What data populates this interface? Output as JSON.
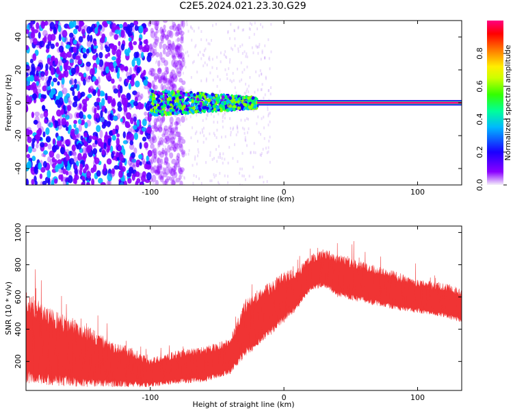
{
  "title": "C2E5.2024.021.23.30.G29",
  "chart_data": [
    {
      "type": "heatmap",
      "xlabel": "Height of straight line (km)",
      "ylabel": "Frequency (Hz)",
      "xlim": [
        -193,
        133
      ],
      "ylim": [
        -50,
        50
      ],
      "xticks": [
        -100,
        0,
        100
      ],
      "yticks": [
        -40,
        -20,
        0,
        20,
        40
      ],
      "colorbar": {
        "label": "Normalized spectral amplitude",
        "range": [
          0,
          1
        ],
        "ticks": [
          0.0,
          0.2,
          0.4,
          0.6,
          0.8
        ],
        "colormap": [
          "#f2f2f2",
          "#8a00ff",
          "#1a00ff",
          "#00b7ff",
          "#00ff66",
          "#88ff00",
          "#ffff00",
          "#ff7a00",
          "#ff0000",
          "#ff0080"
        ]
      },
      "signal_line": {
        "x_range": [
          -20,
          133
        ],
        "frequency": 0,
        "amplitude": 0.95
      },
      "noise_region": {
        "x_range": [
          -193,
          -100
        ],
        "frequency_range": [
          -50,
          50
        ],
        "amplitude": 0.3
      },
      "signal_cluster": {
        "x_range": [
          -100,
          -20
        ],
        "frequency_range": [
          -5,
          5
        ],
        "amplitude": 0.45
      }
    },
    {
      "type": "area",
      "xlabel": "Height of straight line (km)",
      "ylabel": "SNR (10 * v/v)",
      "xlim": [
        -193,
        133
      ],
      "ylim": [
        20,
        1040
      ],
      "xticks": [
        -100,
        0,
        100
      ],
      "yticks": [
        200,
        400,
        600,
        800,
        1000
      ],
      "series_color": "#f03434",
      "envelope": {
        "x": [
          -193,
          -180,
          -170,
          -150,
          -130,
          -115,
          -100,
          -80,
          -60,
          -40,
          -30,
          -20,
          -10,
          0,
          10,
          20,
          30,
          40,
          60,
          80,
          100,
          120,
          133
        ],
        "upper": [
          640,
          560,
          510,
          440,
          330,
          290,
          220,
          270,
          300,
          340,
          580,
          640,
          700,
          760,
          780,
          860,
          900,
          870,
          820,
          770,
          710,
          690,
          660
        ],
        "lower": [
          60,
          50,
          50,
          40,
          40,
          40,
          40,
          60,
          70,
          120,
          220,
          280,
          360,
          440,
          520,
          640,
          660,
          600,
          560,
          520,
          500,
          470,
          440
        ]
      }
    }
  ]
}
